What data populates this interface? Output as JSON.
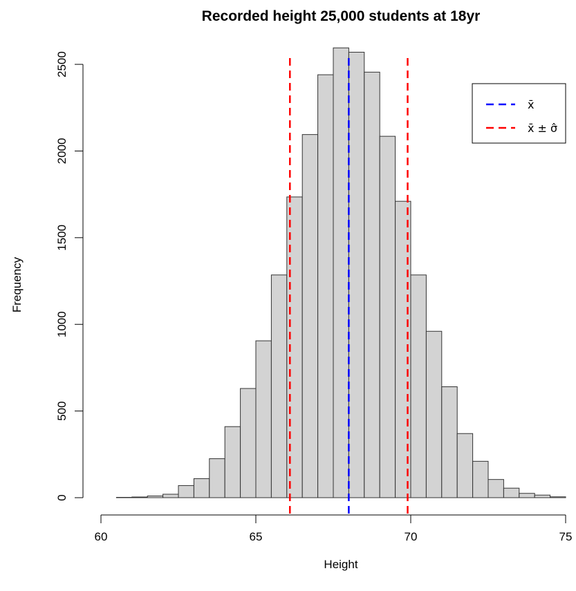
{
  "chart_data": {
    "type": "bar",
    "title": "Recorded height 25,000 students at 18yr",
    "xlabel": "Height",
    "ylabel": "Frequency",
    "xlim": [
      60,
      75
    ],
    "ylim": [
      0,
      2600
    ],
    "x_ticks": [
      "60",
      "65",
      "70",
      "75"
    ],
    "y_ticks": [
      "0",
      "500",
      "1000",
      "1500",
      "2000",
      "2500"
    ],
    "bin_width": 0.5,
    "bins_start": [
      60.5,
      61.0,
      61.5,
      62.0,
      62.5,
      63.0,
      63.5,
      64.0,
      64.5,
      65.0,
      65.5,
      66.0,
      66.5,
      67.0,
      67.5,
      68.0,
      68.5,
      69.0,
      69.5,
      70.0,
      70.5,
      71.0,
      71.5,
      72.0,
      72.5,
      73.0,
      73.5,
      74.0,
      74.5
    ],
    "values": [
      2,
      4,
      10,
      20,
      70,
      110,
      225,
      410,
      630,
      905,
      1285,
      1735,
      2095,
      2440,
      2595,
      2570,
      2455,
      2085,
      1710,
      1285,
      960,
      640,
      370,
      210,
      105,
      55,
      25,
      15,
      5
    ],
    "reference_lines": [
      {
        "name": "x̄",
        "x": 68.0,
        "color": "#0000ff",
        "style": "dashed"
      },
      {
        "name": "x̄ ± σ̂",
        "x": 66.1,
        "color": "#ff0000",
        "style": "dashed"
      },
      {
        "name": "x̄ ± σ̂",
        "x": 69.9,
        "color": "#ff0000",
        "style": "dashed"
      }
    ],
    "legend": {
      "placement": "top-right",
      "entries": [
        {
          "label": "x̄",
          "color": "#0000ff"
        },
        {
          "label": "x̄ ± σ̂",
          "color": "#ff0000"
        }
      ]
    },
    "bar_fill": "#d3d3d3",
    "bar_stroke": "#333333"
  }
}
